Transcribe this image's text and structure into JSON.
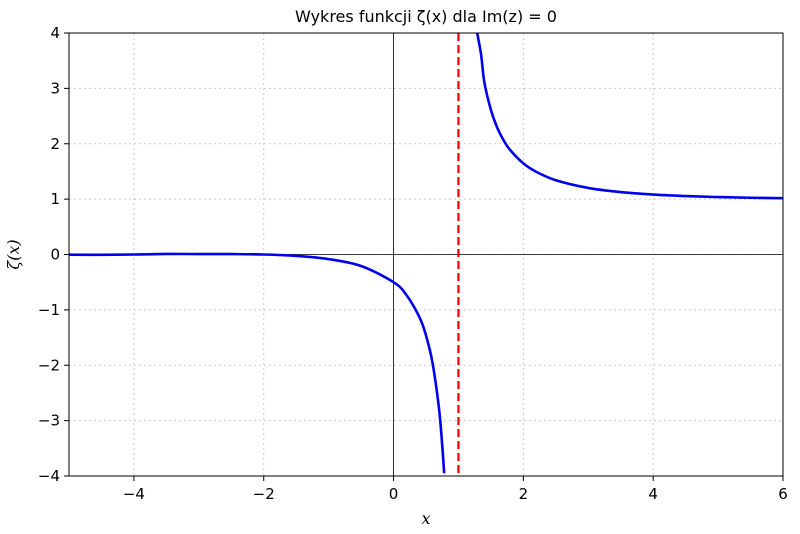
{
  "chart_data": {
    "type": "line",
    "title": "Wykres funkcji ζ(x) dla Im(z) = 0",
    "xlabel": "x",
    "ylabel": "ζ(x)",
    "xlim": [
      -5,
      6
    ],
    "ylim": [
      -4,
      4
    ],
    "x_ticks": [
      -4,
      -2,
      0,
      2,
      4,
      6
    ],
    "y_ticks": [
      -4,
      -3,
      -2,
      -1,
      0,
      1,
      2,
      3,
      4
    ],
    "x_tick_labels": [
      "−4",
      "−2",
      "0",
      "2",
      "4",
      "6"
    ],
    "y_tick_labels": [
      "−4",
      "−3",
      "−2",
      "−1",
      "0",
      "1",
      "2",
      "3",
      "4"
    ],
    "grid": true,
    "colors": {
      "curve": "#0000ee",
      "asymptote": "#ee0000",
      "grid": "#cccccc",
      "zero_lines": "#000000"
    },
    "series": [
      {
        "style": "solid",
        "x": [
          -5,
          -4.5,
          -4,
          -3.5,
          -3,
          -2.5,
          -2,
          -1.5,
          -1,
          -0.5,
          0,
          0.2,
          0.4,
          0.5,
          0.6,
          0.7,
          0.75,
          0.78
        ],
        "y": [
          -0.0039,
          -0.0049,
          0,
          0.0097,
          0.0083,
          0.0073,
          0,
          -0.0255,
          -0.0833,
          -0.2079,
          -0.5,
          -0.7339,
          -1.1347,
          -1.4604,
          -1.9538,
          -2.778,
          -3.4499,
          -3.95
        ]
      },
      {
        "style": "solid",
        "x": [
          1.28,
          1.3,
          1.35,
          1.4,
          1.5,
          1.6,
          1.7,
          1.8,
          2,
          2.2,
          2.5,
          3,
          3.5,
          4,
          4.5,
          5,
          5.5,
          6
        ],
        "y": [
          4.08,
          3.93,
          3.6,
          3.105,
          2.612,
          2.285,
          2.054,
          1.882,
          1.645,
          1.492,
          1.341,
          1.202,
          1.127,
          1.082,
          1.055,
          1.037,
          1.025,
          1.017
        ]
      }
    ],
    "annotations": [
      {
        "type": "vertical-line",
        "x": 1,
        "style": "dashed"
      }
    ]
  }
}
